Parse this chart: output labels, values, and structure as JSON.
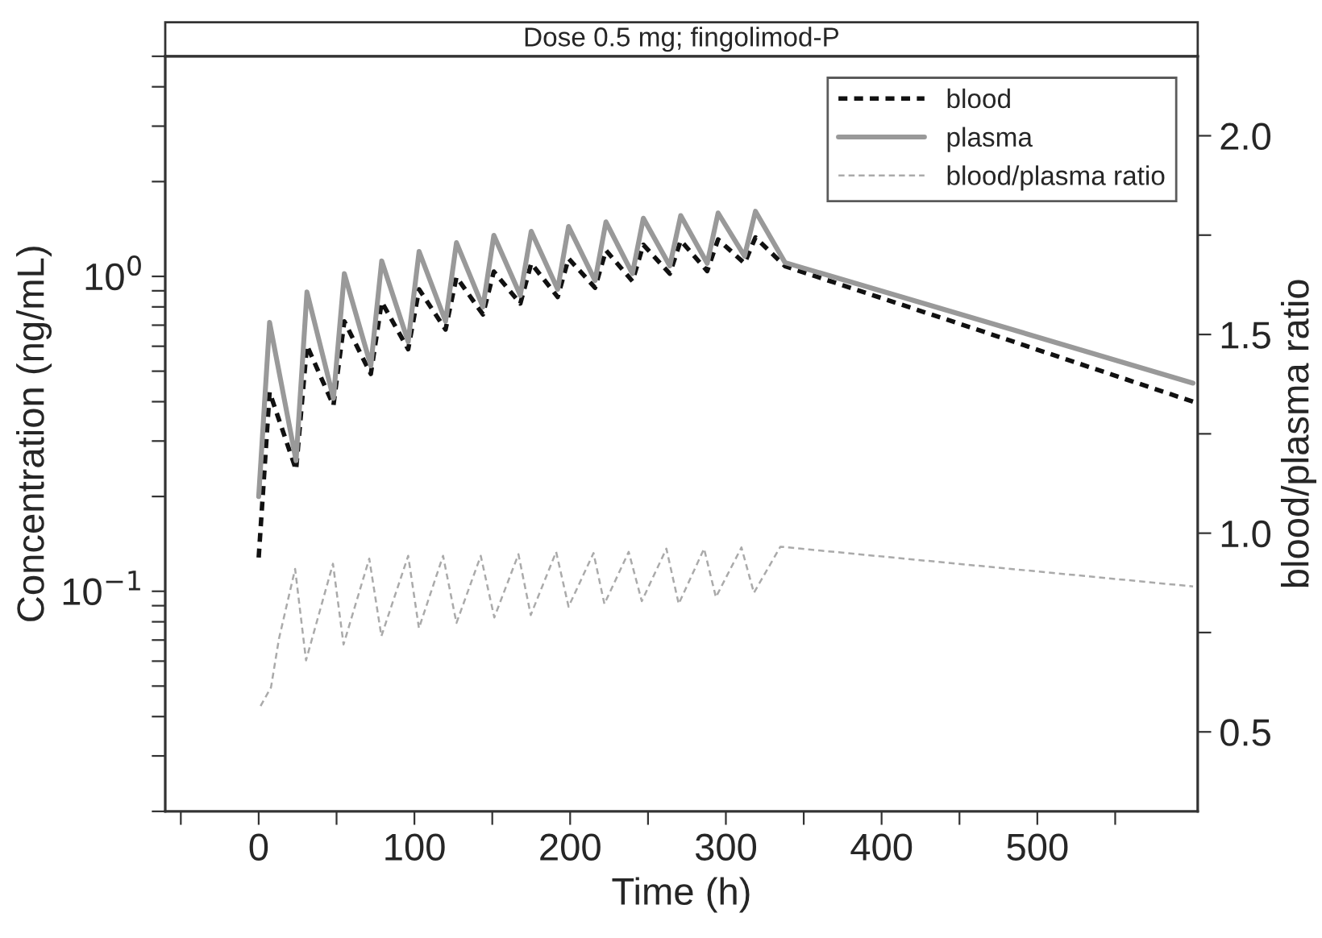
{
  "chart_data": {
    "type": "line",
    "title": "Dose 0.5 mg; fingolimod-P",
    "xlabel": "Time (h)",
    "ylabel": "Concentration (ng/mL)",
    "y2label": "blood/plasma ratio",
    "log": "y",
    "legend": "top right",
    "grid": false,
    "xlim": [
      -60,
      603
    ],
    "xticks": [
      {
        "value": -50,
        "label": null
      },
      0,
      {
        "value": 50,
        "label": null
      },
      100,
      {
        "value": 150,
        "label": null
      },
      200,
      {
        "value": 250,
        "label": null
      },
      300,
      {
        "value": 350,
        "label": null
      },
      400,
      {
        "value": 450,
        "label": null
      },
      500,
      {
        "value": 550,
        "label": null
      }
    ],
    "ylim": [
      0.02,
      5
    ],
    "yticks": [
      {
        "value": 0.02,
        "label": null
      },
      {
        "value": 0.03,
        "label": null
      },
      {
        "value": 0.04,
        "label": null
      },
      {
        "value": 0.05,
        "label": null
      },
      {
        "value": 0.06,
        "label": null
      },
      {
        "value": 0.07,
        "label": null
      },
      {
        "value": 0.08,
        "label": null
      },
      {
        "value": 0.09,
        "label": null
      },
      {
        "value": 0.1,
        "label": "10$^{−1}$"
      },
      {
        "value": 0.2,
        "label": null
      },
      {
        "value": 0.3,
        "label": null
      },
      {
        "value": 0.4,
        "label": null
      },
      {
        "value": 0.5,
        "label": null
      },
      {
        "value": 0.6,
        "label": null
      },
      {
        "value": 0.7,
        "label": null
      },
      {
        "value": 0.8,
        "label": null
      },
      {
        "value": 0.9,
        "label": null
      },
      {
        "value": 1,
        "label": "10$^{0}$"
      },
      {
        "value": 2,
        "label": null
      },
      {
        "value": 3,
        "label": null
      },
      {
        "value": 4,
        "label": null
      },
      {
        "value": 5,
        "label": null
      }
    ],
    "y2lim": [
      0.3,
      2.2
    ],
    "y2ticks": [
      {
        "value": 0.5,
        "label": "0.5"
      },
      {
        "value": 0.75,
        "label": null
      },
      {
        "value": 1.0,
        "label": "1.0"
      },
      {
        "value": 1.25,
        "label": null
      },
      {
        "value": 1.5,
        "label": "1.5"
      },
      {
        "value": 1.75,
        "label": null
      },
      {
        "value": 2.0,
        "label": "2.0"
      }
    ],
    "series": [
      {
        "name": "blood",
        "color": "#111111",
        "line_style": "dotted",
        "x": [
          0,
          7,
          24,
          31,
          48,
          55,
          72,
          79,
          96,
          103,
          120,
          127,
          144,
          151,
          168,
          175,
          192,
          199,
          216,
          223,
          240,
          247,
          264,
          271,
          288,
          295,
          312,
          319,
          338,
          466,
          600
        ],
        "values": [
          0.128,
          0.429,
          0.243,
          0.603,
          0.389,
          0.72,
          0.49,
          0.829,
          0.587,
          0.91,
          0.678,
          0.995,
          0.757,
          1.036,
          0.82,
          1.1,
          0.86,
          1.14,
          0.92,
          1.21,
          0.965,
          1.26,
          1.02,
          1.3,
          1.04,
          1.31,
          1.1,
          1.33,
          1.077,
          0.666,
          0.4
        ]
      },
      {
        "name": "plasma",
        "color": "#999999",
        "line_style": "solid",
        "x": [
          0,
          7,
          24,
          31,
          48,
          55,
          72,
          79,
          96,
          103,
          120,
          127,
          144,
          151,
          168,
          175,
          192,
          199,
          216,
          223,
          240,
          247,
          264,
          271,
          288,
          295,
          312,
          319,
          338,
          466,
          600
        ],
        "values": [
          0.2,
          0.714,
          0.26,
          0.892,
          0.41,
          1.02,
          0.52,
          1.12,
          0.62,
          1.2,
          0.72,
          1.28,
          0.8,
          1.35,
          0.87,
          1.39,
          0.91,
          1.44,
          0.97,
          1.49,
          1.02,
          1.53,
          1.08,
          1.56,
          1.1,
          1.59,
          1.16,
          1.61,
          1.106,
          0.72,
          0.458
        ]
      },
      {
        "name": "blood/plasma ratio",
        "color": "#aaaaaa",
        "line_style": "dashed",
        "axis": "y2",
        "x": [
          1.2,
          7.9,
          13,
          23.4,
          30.4,
          47.7,
          54.5,
          71,
          78.8,
          96,
          102.9,
          118.4,
          127,
          142.6,
          151.3,
          166.8,
          174.7,
          191,
          199,
          215,
          222,
          237.6,
          246,
          261.8,
          269.7,
          286,
          293.6,
          310,
          318,
          335,
          600
        ],
        "values": [
          0.565,
          0.612,
          0.734,
          0.91,
          0.68,
          0.923,
          0.72,
          0.936,
          0.741,
          0.943,
          0.761,
          0.943,
          0.774,
          0.943,
          0.788,
          0.947,
          0.794,
          0.953,
          0.815,
          0.95,
          0.822,
          0.953,
          0.829,
          0.961,
          0.822,
          0.961,
          0.839,
          0.964,
          0.85,
          0.966,
          0.866
        ]
      }
    ]
  }
}
